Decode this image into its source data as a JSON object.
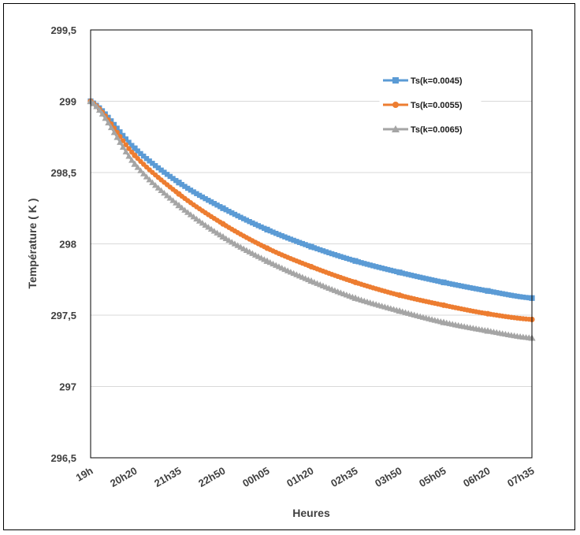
{
  "chart_data": {
    "type": "line",
    "title": "",
    "xlabel": "Heures",
    "ylabel": "Température ( K )",
    "ylim": [
      296.5,
      299.5
    ],
    "y_ticks": [
      "296,5",
      "297",
      "297,5",
      "298",
      "298,5",
      "299",
      "299,5"
    ],
    "y_tick_values": [
      296.5,
      297.0,
      297.5,
      298.0,
      298.5,
      299.0,
      299.5
    ],
    "categories": [
      "19h",
      "20h20",
      "21h35",
      "22h50",
      "00h05",
      "01h20",
      "02h35",
      "03h50",
      "05h05",
      "06h20",
      "07h35"
    ],
    "grid": "horizontal",
    "legend_position": "top-right",
    "series": [
      {
        "name": "Ts(k=0.0045)",
        "color": "#5b9bd5",
        "marker": "square",
        "values": [
          299.0,
          298.67,
          298.43,
          298.25,
          298.1,
          297.98,
          297.88,
          297.8,
          297.73,
          297.67,
          297.62
        ]
      },
      {
        "name": "Ts(k=0.0055)",
        "color": "#ed7d31",
        "marker": "circle",
        "values": [
          299.0,
          298.62,
          298.35,
          298.14,
          297.97,
          297.84,
          297.73,
          297.64,
          297.57,
          297.51,
          297.47
        ]
      },
      {
        "name": "Ts(k=0.0065)",
        "color": "#a5a5a5",
        "marker": "triangle",
        "values": [
          299.0,
          298.56,
          298.27,
          298.05,
          297.88,
          297.74,
          297.62,
          297.53,
          297.45,
          297.39,
          297.34
        ]
      }
    ]
  }
}
